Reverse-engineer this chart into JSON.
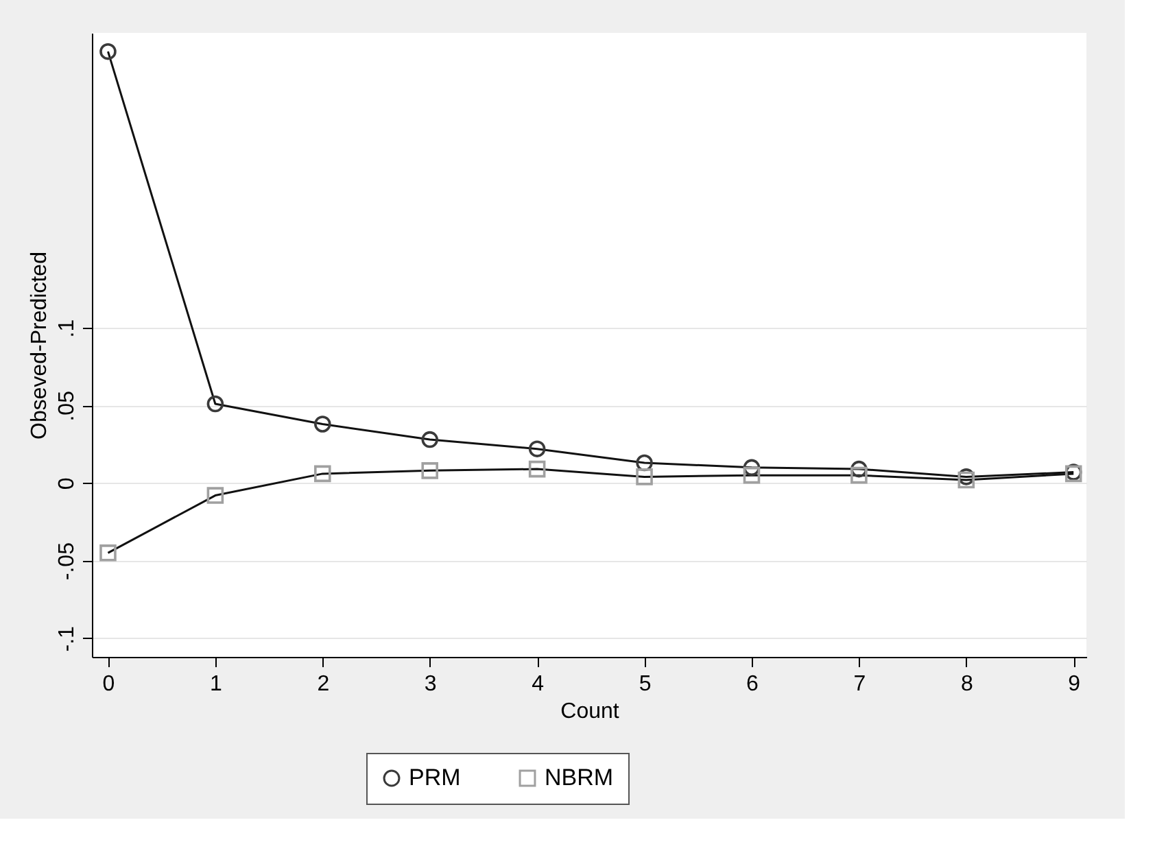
{
  "chart_data": {
    "type": "line",
    "xlabel": "Count",
    "ylabel": "Obseved-Predicted",
    "x": [
      0,
      1,
      2,
      3,
      4,
      5,
      6,
      7,
      8,
      9
    ],
    "series": [
      {
        "name": "PRM",
        "color": "#3a3a3a",
        "marker": "circle",
        "values": [
          0.278,
          0.051,
          0.038,
          0.028,
          0.022,
          0.013,
          0.01,
          0.009,
          0.004,
          0.007
        ]
      },
      {
        "name": "NBRM",
        "color": "#a0a0a0",
        "marker": "square",
        "values": [
          -0.045,
          -0.008,
          0.006,
          0.008,
          0.009,
          0.004,
          0.005,
          0.005,
          0.002,
          0.006
        ]
      }
    ],
    "xlim": [
      -0.15,
      9.12
    ],
    "ylim": [
      -0.112,
      0.29
    ],
    "xticks": [
      0,
      1,
      2,
      3,
      4,
      5,
      6,
      7,
      8,
      9
    ],
    "yticks": [
      {
        "value": -0.1,
        "label": "-.1"
      },
      {
        "value": -0.05,
        "label": "-.05"
      },
      0,
      {
        "value": 0.05,
        "label": ".05"
      },
      {
        "value": 0.1,
        "label": ".1"
      }
    ],
    "grid": "y",
    "legend": "bottom",
    "line_style": "solid"
  }
}
